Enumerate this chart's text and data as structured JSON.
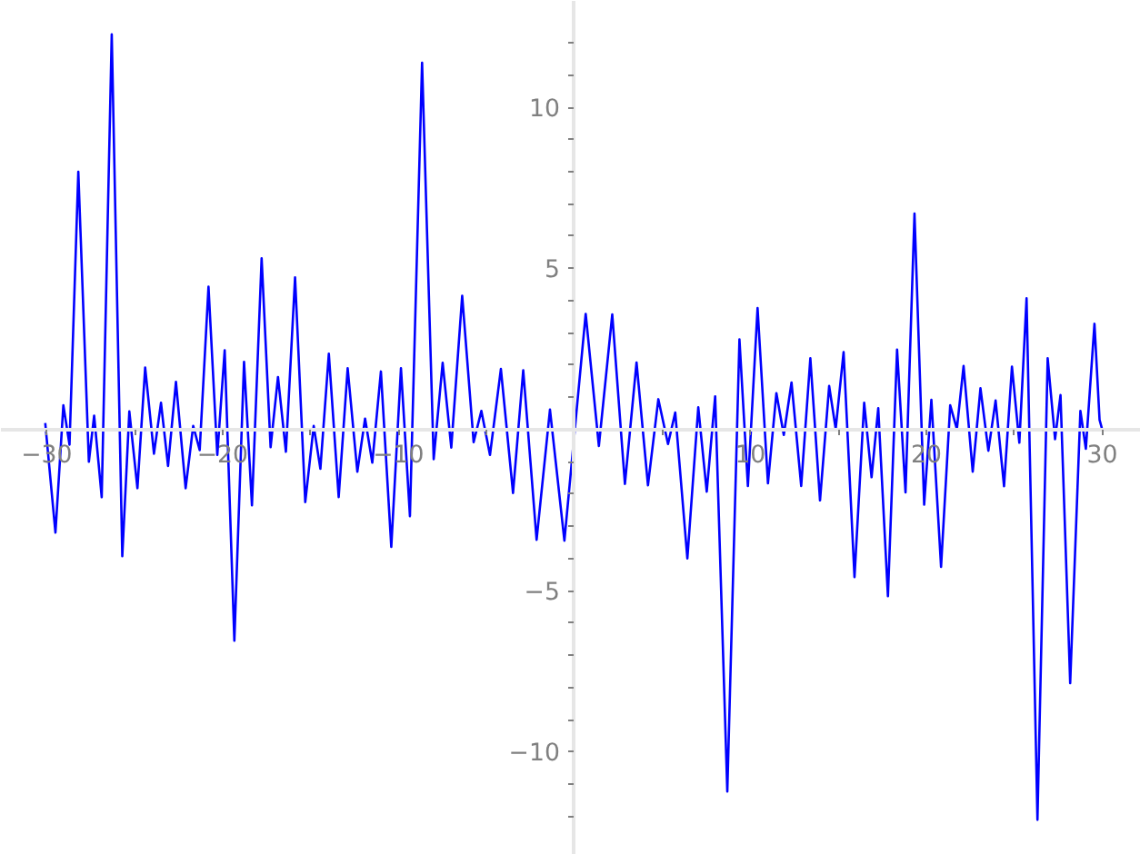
{
  "chart_data": {
    "type": "line",
    "color": "#0000ff",
    "line_style": "solid",
    "x": [
      -30.08,
      -29.5,
      -29.05,
      -28.7,
      -28.2,
      -27.6,
      -27.3,
      -26.87,
      -26.3,
      -25.7,
      -25.3,
      -24.84,
      -24.4,
      -23.9,
      -23.5,
      -23.1,
      -22.65,
      -22.1,
      -21.67,
      -21.3,
      -20.8,
      -20.3,
      -19.88,
      -19.33,
      -18.78,
      -18.33,
      -17.78,
      -17.27,
      -16.85,
      -16.4,
      -15.88,
      -15.3,
      -14.82,
      -14.44,
      -13.96,
      -13.4,
      -12.89,
      -12.34,
      -11.9,
      -11.49,
      -11.0,
      -10.41,
      -9.86,
      -9.35,
      -8.66,
      -8.0,
      -7.49,
      -7.0,
      -6.38,
      -5.73,
      -5.29,
      -4.8,
      -4.18,
      -3.49,
      -2.91,
      -2.15,
      -1.39,
      -0.57,
      0.64,
      1.39,
      2.15,
      2.87,
      3.53,
      4.18,
      4.77,
      5.32,
      5.73,
      6.42,
      7.04,
      7.52,
      8.0,
      8.69,
      9.38,
      9.86,
      10.41,
      11.0,
      11.48,
      11.9,
      12.34,
      12.89,
      13.41,
      13.96,
      14.48,
      14.85,
      15.3,
      15.92,
      16.47,
      16.89,
      17.27,
      17.82,
      18.34,
      18.82,
      19.33,
      19.88,
      20.29,
      20.84,
      21.36,
      21.74,
      22.12,
      22.64,
      23.08,
      23.53,
      23.94,
      24.42,
      24.87,
      25.29,
      25.7,
      26.32,
      26.9,
      27.32,
      27.63,
      28.18,
      28.76,
      29.07,
      29.56,
      29.85,
      30.0
    ],
    "values": [
      0.2,
      -3.2,
      0.75,
      -0.47,
      8.0,
      -1.0,
      0.43,
      -2.1,
      12.26,
      -3.93,
      0.56,
      -1.82,
      1.92,
      -0.75,
      0.83,
      -1.13,
      1.48,
      -1.82,
      0.11,
      -0.64,
      4.43,
      -0.79,
      2.46,
      -6.55,
      2.1,
      -2.35,
      5.31,
      -0.55,
      1.63,
      -0.69,
      4.72,
      -2.25,
      0.11,
      -1.22,
      2.35,
      -2.1,
      1.9,
      -1.31,
      0.34,
      -1.03,
      1.8,
      -3.64,
      1.9,
      -2.69,
      11.38,
      -0.92,
      2.07,
      -0.56,
      4.15,
      -0.39,
      0.58,
      -0.79,
      1.88,
      -1.97,
      1.84,
      -3.42,
      0.62,
      -3.45,
      3.59,
      -0.51,
      3.57,
      -1.69,
      2.08,
      -1.73,
      0.94,
      -0.45,
      0.53,
      -4.0,
      0.69,
      -1.93,
      1.03,
      -11.23,
      2.8,
      -1.75,
      3.77,
      -1.67,
      1.13,
      -0.17,
      1.46,
      -1.75,
      2.21,
      -2.2,
      1.35,
      0.02,
      2.4,
      -4.58,
      0.83,
      -1.48,
      0.66,
      -5.17,
      2.48,
      -1.95,
      6.7,
      -2.33,
      0.92,
      -4.26,
      0.75,
      0.02,
      1.97,
      -1.31,
      1.28,
      -0.66,
      0.9,
      -1.76,
      1.95,
      -0.41,
      4.07,
      -12.11,
      2.21,
      -0.3,
      1.07,
      -7.87,
      0.58,
      -0.6,
      3.28,
      0.3,
      0.0
    ],
    "xlim": [
      -32.6,
      32.2
    ],
    "ylim": [
      -13.2,
      13.3
    ],
    "xticks": [
      {
        "value": -30,
        "label": "−30"
      },
      {
        "value": -25,
        "label": null
      },
      {
        "value": -20,
        "label": "−20"
      },
      {
        "value": -15,
        "label": null
      },
      {
        "value": -10,
        "label": "−10"
      },
      {
        "value": -5,
        "label": null
      },
      {
        "value": 5,
        "label": null
      },
      {
        "value": 10,
        "label": "10"
      },
      {
        "value": 15,
        "label": null
      },
      {
        "value": 20,
        "label": "20"
      },
      {
        "value": 25,
        "label": null
      },
      {
        "value": 30,
        "label": "30"
      }
    ],
    "yticks": [
      {
        "value": -12,
        "label": null
      },
      {
        "value": -11,
        "label": null
      },
      {
        "value": -10,
        "label": "−10"
      },
      {
        "value": -9,
        "label": null
      },
      {
        "value": -8,
        "label": null
      },
      {
        "value": -7,
        "label": null
      },
      {
        "value": -6,
        "label": null
      },
      {
        "value": -5,
        "label": "−5"
      },
      {
        "value": -4,
        "label": null
      },
      {
        "value": -3,
        "label": null
      },
      {
        "value": -2,
        "label": null
      },
      {
        "value": -1,
        "label": null
      },
      {
        "value": 1,
        "label": null
      },
      {
        "value": 2,
        "label": null
      },
      {
        "value": 3,
        "label": null
      },
      {
        "value": 4,
        "label": null
      },
      {
        "value": 5,
        "label": "5"
      },
      {
        "value": 6,
        "label": null
      },
      {
        "value": 7,
        "label": null
      },
      {
        "value": 8,
        "label": null
      },
      {
        "value": 9,
        "label": null
      },
      {
        "value": 10,
        "label": "10"
      },
      {
        "value": 11,
        "label": null
      },
      {
        "value": 12,
        "label": null
      }
    ]
  }
}
